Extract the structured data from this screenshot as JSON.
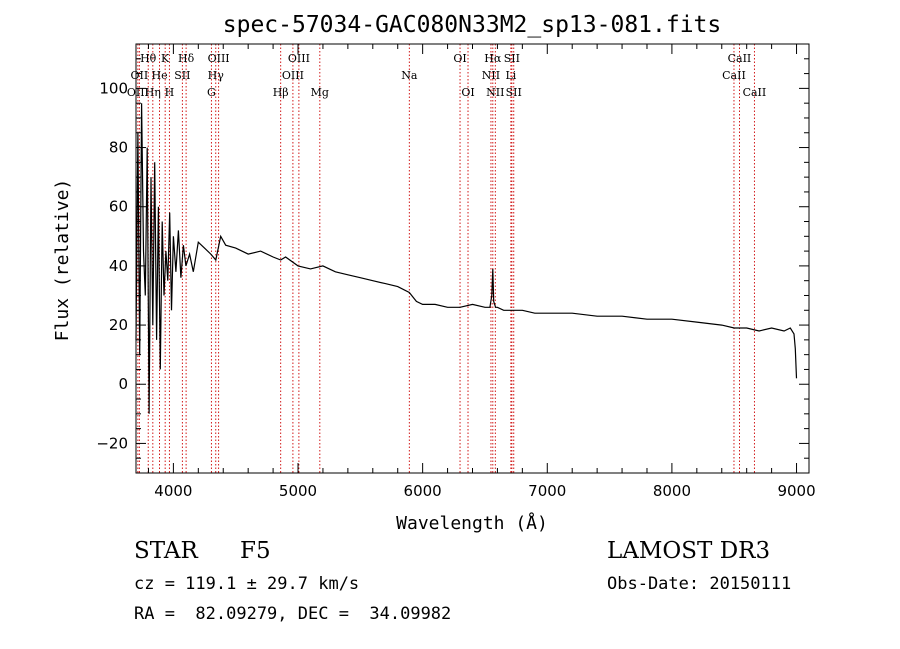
{
  "chart_data": {
    "type": "line",
    "title": "spec-57034-GAC080N33M2_sp13-081.fits",
    "xlabel": "Wavelength (Å)",
    "ylabel": "Flux (relative)",
    "xlim": [
      3700,
      9100
    ],
    "ylim": [
      -30,
      115
    ],
    "x_ticks": [
      4000,
      5000,
      6000,
      7000,
      8000,
      9000
    ],
    "x_tick_labels": [
      "4000",
      "5000",
      "6000",
      "7000",
      "8000",
      "9000"
    ],
    "y_ticks": [
      -20,
      0,
      20,
      40,
      60,
      80,
      100
    ],
    "y_tick_labels": [
      "−20",
      "0",
      "20",
      "40",
      "60",
      "80",
      "100"
    ],
    "series": [
      {
        "name": "spectrum",
        "x": [
          3700,
          3715,
          3730,
          3745,
          3760,
          3775,
          3790,
          3805,
          3820,
          3835,
          3850,
          3865,
          3880,
          3895,
          3910,
          3925,
          3940,
          3955,
          3970,
          3985,
          4000,
          4020,
          4040,
          4060,
          4080,
          4100,
          4130,
          4160,
          4200,
          4250,
          4300,
          4340,
          4380,
          4420,
          4500,
          4600,
          4700,
          4800,
          4861,
          4900,
          5000,
          5100,
          5200,
          5300,
          5400,
          5500,
          5600,
          5700,
          5800,
          5893,
          5950,
          6000,
          6100,
          6200,
          6300,
          6400,
          6500,
          6540,
          6555,
          6563,
          6570,
          6585,
          6600,
          6650,
          6700,
          6800,
          6900,
          7000,
          7200,
          7400,
          7600,
          7800,
          8000,
          8200,
          8400,
          8500,
          8600,
          8700,
          8800,
          8900,
          8950,
          8980,
          8990,
          9000
        ],
        "y": [
          15,
          85,
          10,
          95,
          45,
          30,
          80,
          -10,
          70,
          20,
          75,
          15,
          60,
          5,
          55,
          30,
          45,
          35,
          58,
          25,
          50,
          38,
          52,
          36,
          47,
          40,
          44,
          38,
          48,
          46,
          44,
          42,
          50,
          47,
          46,
          44,
          45,
          43,
          42,
          43,
          40,
          39,
          40,
          38,
          37,
          36,
          35,
          34,
          33,
          31,
          28,
          27,
          27,
          26,
          26,
          27,
          26,
          26,
          30,
          39,
          28,
          26,
          26,
          25,
          25,
          25,
          24,
          24,
          24,
          23,
          23,
          22,
          22,
          21,
          20,
          19,
          19,
          18,
          19,
          18,
          19,
          17,
          12,
          2
        ]
      }
    ],
    "lines": [
      {
        "label": "Hθ",
        "wavelength": 3798,
        "row": 0
      },
      {
        "label": "OII",
        "wavelength": 3727,
        "row": 1
      },
      {
        "label": "OIII",
        "wavelength": 3715,
        "row": 2
      },
      {
        "label": "Hη",
        "wavelength": 3835,
        "row": 2
      },
      {
        "label": "K",
        "wavelength": 3934,
        "row": 0
      },
      {
        "label": "He",
        "wavelength": 3889,
        "row": 1
      },
      {
        "label": "SII",
        "wavelength": 4072,
        "row": 1
      },
      {
        "label": "H",
        "wavelength": 3968,
        "row": 2
      },
      {
        "label": "Hδ",
        "wavelength": 4102,
        "row": 0
      },
      {
        "label": "OIII",
        "wavelength": 4363,
        "row": 0
      },
      {
        "label": "Hγ",
        "wavelength": 4340,
        "row": 1
      },
      {
        "label": "G",
        "wavelength": 4305,
        "row": 2
      },
      {
        "label": "Hβ",
        "wavelength": 4861,
        "row": 2
      },
      {
        "label": "OIII",
        "wavelength": 5007,
        "row": 0
      },
      {
        "label": "OIII",
        "wavelength": 4959,
        "row": 1
      },
      {
        "label": "Mg",
        "wavelength": 5175,
        "row": 2
      },
      {
        "label": "Na",
        "wavelength": 5893,
        "row": 1
      },
      {
        "label": "OI",
        "wavelength": 6300,
        "row": 0
      },
      {
        "label": "OI",
        "wavelength": 6364,
        "row": 2
      },
      {
        "label": "Hα",
        "wavelength": 6563,
        "row": 0
      },
      {
        "label": "SII",
        "wavelength": 6716,
        "row": 0
      },
      {
        "label": "NII",
        "wavelength": 6548,
        "row": 1
      },
      {
        "label": "Li",
        "wavelength": 6708,
        "row": 1
      },
      {
        "label": "NII",
        "wavelength": 6583,
        "row": 2
      },
      {
        "label": "SII",
        "wavelength": 6731,
        "row": 2
      },
      {
        "label": "CaII",
        "wavelength": 8542,
        "row": 0
      },
      {
        "label": "CaII",
        "wavelength": 8498,
        "row": 1
      },
      {
        "label": "CaII",
        "wavelength": 8662,
        "row": 2
      }
    ]
  },
  "info": {
    "object_class": "STAR",
    "subclass": "F5",
    "survey": "LAMOST DR3",
    "redshift": "cz = 119.1 ± 29.7 km/s",
    "obs_date": "Obs-Date: 20150111",
    "coords": "RA =  82.09279, DEC =  34.09982"
  },
  "colors": {
    "spectrum": "#000000",
    "line_markers": "#cc0000",
    "axes": "#000000"
  }
}
